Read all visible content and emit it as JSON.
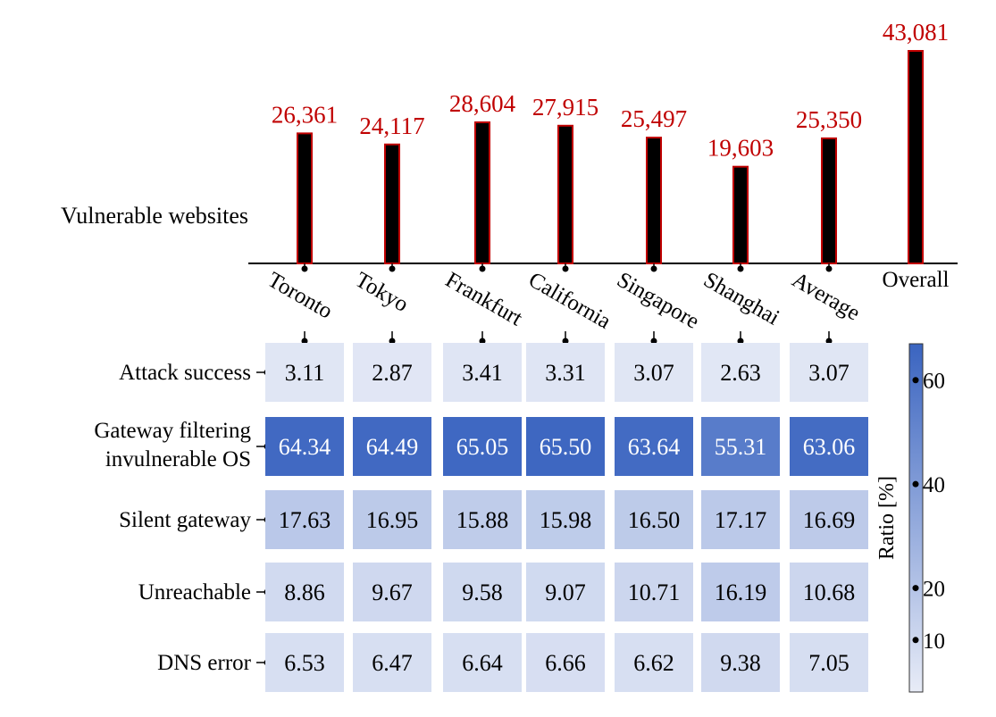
{
  "chart_data": [
    {
      "type": "bar",
      "ylabel": "Vulnerable websites",
      "categories": [
        "Toronto",
        "Tokyo",
        "Frankfurt",
        "California",
        "Singapore",
        "Shanghai",
        "Average",
        "Overall"
      ],
      "values": [
        26361,
        24117,
        28604,
        27915,
        25497,
        19603,
        25350,
        43081
      ],
      "value_labels": [
        "26,361",
        "24,117",
        "28,604",
        "27,915",
        "25,497",
        "19,603",
        "25,350",
        "43,081"
      ],
      "bar_color": "#000000",
      "bar_edge_color": "#c00000",
      "label_color": "#c00000"
    },
    {
      "type": "heatmap",
      "columns": [
        "Toronto",
        "Tokyo",
        "Frankfurt",
        "California",
        "Singapore",
        "Shanghai",
        "Average"
      ],
      "rows": [
        {
          "label_lines": [
            "Attack success"
          ],
          "values": [
            "3.11",
            "2.87",
            "3.41",
            "3.31",
            "3.07",
            "2.63",
            "3.07"
          ]
        },
        {
          "label_lines": [
            "Gateway filtering",
            "invulnerable OS"
          ],
          "values": [
            "64.34",
            "64.49",
            "65.05",
            "65.50",
            "63.64",
            "55.31",
            "63.06"
          ]
        },
        {
          "label_lines": [
            "Silent gateway"
          ],
          "values": [
            "17.63",
            "16.95",
            "15.88",
            "15.98",
            "16.50",
            "17.17",
            "16.69"
          ]
        },
        {
          "label_lines": [
            "Unreachable"
          ],
          "values": [
            "8.86",
            "9.67",
            "9.58",
            "9.07",
            "10.71",
            "16.19",
            "10.68"
          ]
        },
        {
          "label_lines": [
            "DNS error"
          ],
          "values": [
            "6.53",
            "6.47",
            "6.64",
            "6.66",
            "6.62",
            "9.38",
            "7.05"
          ]
        }
      ],
      "colorbar": {
        "label": "Ratio [%]",
        "ticks": [
          "10",
          "20",
          "40",
          "60"
        ],
        "colors": [
          "#e8ecf7",
          "#3a64c0"
        ],
        "range": [
          0,
          67
        ]
      }
    }
  ]
}
